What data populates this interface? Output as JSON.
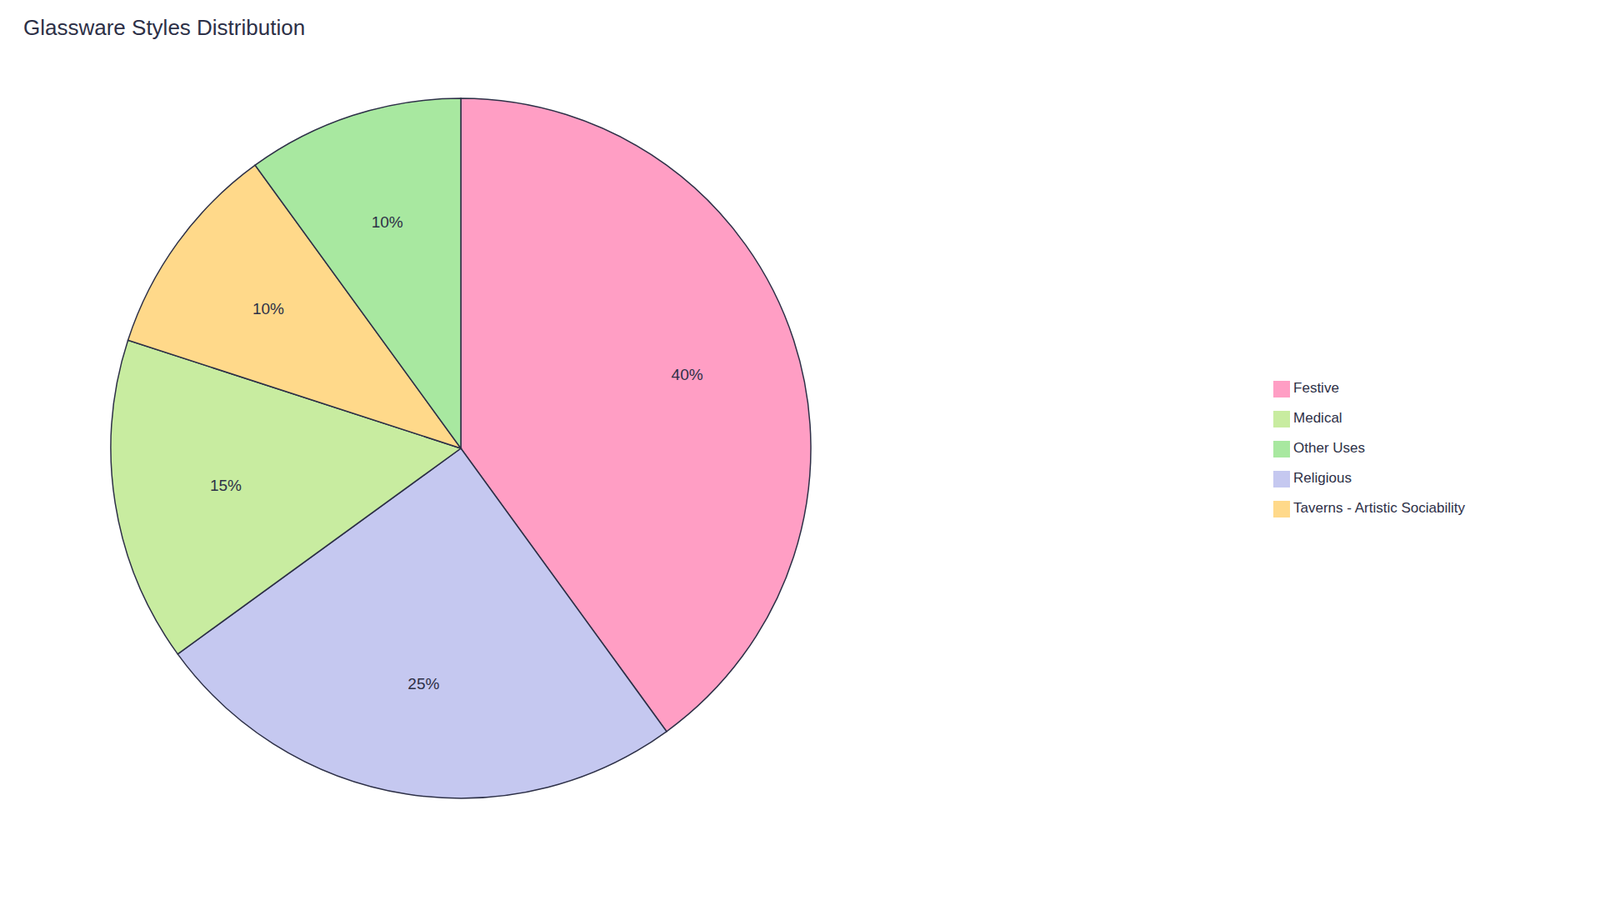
{
  "chart_data": {
    "type": "pie",
    "title": "Glassware Styles Distribution",
    "categories": [
      "Festive",
      "Religious",
      "Medical",
      "Taverns - Artistic Sociability",
      "Other Uses"
    ],
    "values": [
      40,
      25,
      15,
      10,
      10
    ],
    "value_labels": [
      "40%",
      "25%",
      "15%",
      "10%",
      "10%"
    ],
    "colors": [
      "#FF9EC4",
      "#C5C8F0",
      "#C8ECA0",
      "#FFD98A",
      "#A8E8A0"
    ],
    "data_labels": true,
    "legend": "right"
  }
}
